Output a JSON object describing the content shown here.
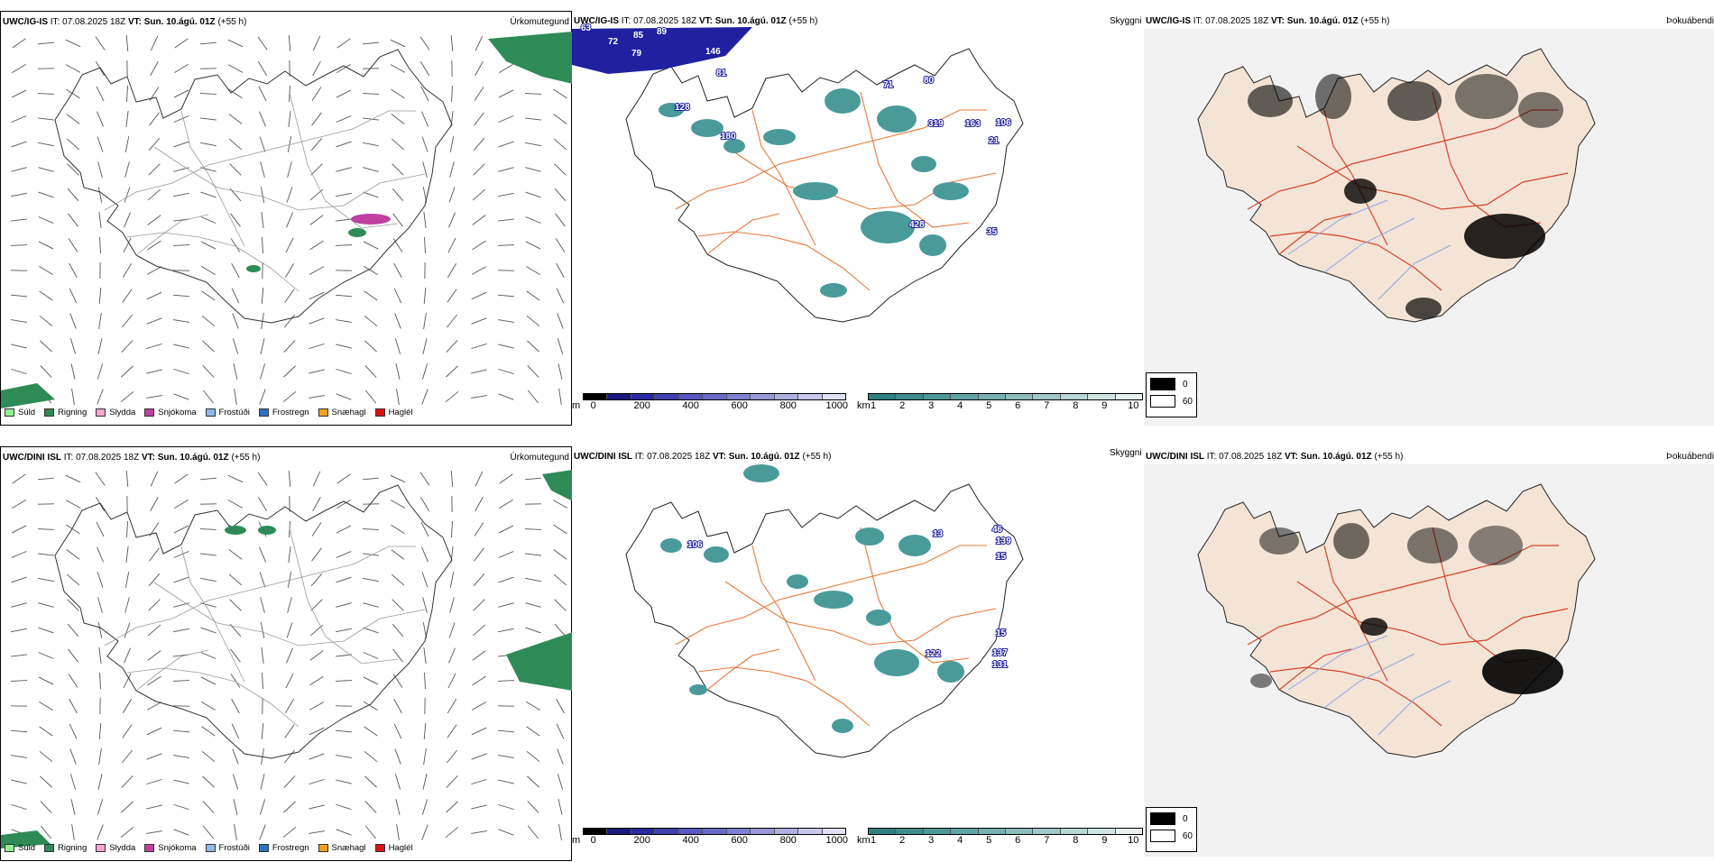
{
  "rows": [
    {
      "precip": {
        "model": "UWC/IG-IS",
        "it_label": "IT:",
        "it": "07.08.2025 18Z",
        "vt_label": "VT:",
        "vt": "Sun. 10.ágú. 01Z",
        "lead": "(+55 h)",
        "title": "Úrkomutegund"
      },
      "cloud": {
        "model": "UWC/IG-IS",
        "it_label": "IT:",
        "it": "07.08.2025 18Z",
        "vt_label": "VT:",
        "vt": "Sun. 10.ágú. 01Z",
        "lead": "(+55 h)",
        "title": "Skyggni"
      },
      "fog": {
        "model": "UWC/IG-IS",
        "it_label": "IT:",
        "it": "07.08.2025 18Z",
        "vt_label": "VT:",
        "vt": "Sun. 10.ágú. 01Z",
        "lead": "(+55 h)",
        "title": "Þokuábendi"
      },
      "cloud_labels": [
        "63",
        "72",
        "85",
        "89",
        "79",
        "146",
        "81",
        "128",
        "180",
        "319",
        "163",
        "106",
        "21",
        "428",
        "35",
        "80",
        "71"
      ]
    },
    {
      "precip": {
        "model": "UWC/DINI ISL",
        "it_label": "IT:",
        "it": "07.08.2025 18Z",
        "vt_label": "VT:",
        "vt": "Sun. 10.ágú. 01Z",
        "lead": "(+55 h)",
        "title": "Úrkomutegund"
      },
      "cloud": {
        "model": "UWC/DINI ISL",
        "it_label": "IT:",
        "it": "07.08.2025 18Z",
        "vt_label": "VT:",
        "vt": "Sun. 10.ágú. 01Z",
        "lead": "(+55 h)",
        "title": "Skyggni"
      },
      "fog": {
        "model": "UWC/DINI ISL",
        "it_label": "IT:",
        "it": "07.08.2025 18Z",
        "vt_label": "VT:",
        "vt": "Sun. 10.ágú. 01Z",
        "lead": "(+55 h)",
        "title": "Þokuábendi"
      },
      "cloud_labels": [
        "106",
        "13",
        "46",
        "139",
        "15",
        "122",
        "137",
        "131",
        "15"
      ]
    }
  ],
  "ptype_legend": [
    {
      "label": "Súld",
      "color": "#90ee90"
    },
    {
      "label": "Rigning",
      "color": "#2e8b57"
    },
    {
      "label": "Slydda",
      "color": "#f4a6d0"
    },
    {
      "label": "Snjókoma",
      "color": "#c040a0"
    },
    {
      "label": "Frostúði",
      "color": "#8fb8ec"
    },
    {
      "label": "Frostregn",
      "color": "#3070c0"
    },
    {
      "label": "Snæhagl",
      "color": "#f0a020"
    },
    {
      "label": "Haglél",
      "color": "#e01010"
    }
  ],
  "cloudbase_bar": {
    "unit": "m",
    "ticks": [
      "0",
      "200",
      "400",
      "600",
      "800",
      "1000"
    ],
    "colors": [
      "#000000",
      "#1a1a80",
      "#2a2aa0",
      "#4040b0",
      "#5858c0",
      "#6a6ac8",
      "#8080d0",
      "#9898d8",
      "#b0b0e0",
      "#c8c8ea",
      "#e0e0f4"
    ]
  },
  "vis_bar": {
    "unit": "km",
    "ticks": [
      "1",
      "2",
      "3",
      "4",
      "5",
      "6",
      "7",
      "8",
      "9",
      "10"
    ],
    "colors": [
      "#2f8080",
      "#3f8c8c",
      "#4f9898",
      "#62a4a4",
      "#76b0b0",
      "#8cbcbc",
      "#a2c8c8",
      "#b8d6d6",
      "#d0e4e4",
      "#e8f2f2"
    ]
  },
  "fog_legend": [
    {
      "value": "0",
      "color": "#000000"
    },
    {
      "value": "60",
      "color": "#ffffff"
    }
  ],
  "colors": {
    "land": "#f3e4d6",
    "road": "#e8783a",
    "river": "#8aa8e8",
    "rain": "#2e8b57",
    "snow": "#c040a0",
    "cloud_blue": "#2020a0",
    "cloud_teal": "#4a9a9a"
  }
}
